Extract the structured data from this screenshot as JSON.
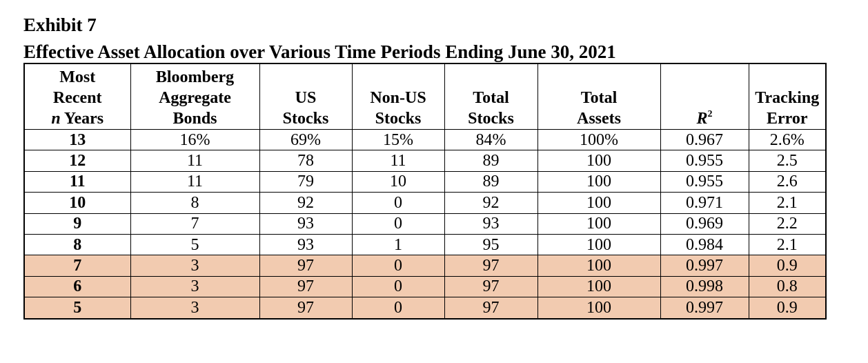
{
  "heading": {
    "exhibit": "Exhibit 7",
    "title": "Effective Asset Allocation over Various Time Periods Ending June 30, 2021"
  },
  "table": {
    "headers": {
      "years": {
        "line1": "Most",
        "line2": "Recent",
        "line3_italic": "n",
        "line3_rest": " Years"
      },
      "bonds": {
        "line1": "Bloomberg",
        "line2": "Aggregate",
        "line3": "Bonds"
      },
      "us": {
        "line1": "US",
        "line2": "Stocks"
      },
      "nonus": {
        "line1": "Non-US",
        "line2": "Stocks"
      },
      "total_stocks": {
        "line1": "Total",
        "line2": "Stocks"
      },
      "total_assets": {
        "line1": "Total",
        "line2": "Assets"
      },
      "r2": {
        "base": "R",
        "sup": "2"
      },
      "te": {
        "line1": "Tracking",
        "line2": "Error"
      }
    },
    "highlight_color": "#f2cbb0",
    "rows": [
      {
        "years": "13",
        "bonds": "16%",
        "us": "69%",
        "nonus": "15%",
        "total_stocks": "84%",
        "total_assets": "100%",
        "r2": "0.967",
        "te": "2.6%",
        "highlighted": false
      },
      {
        "years": "12",
        "bonds": "11",
        "us": "78",
        "nonus": "11",
        "total_stocks": "89",
        "total_assets": "100",
        "r2": "0.955",
        "te": "2.5",
        "highlighted": false
      },
      {
        "years": "11",
        "bonds": "11",
        "us": "79",
        "nonus": "10",
        "total_stocks": "89",
        "total_assets": "100",
        "r2": "0.955",
        "te": "2.6",
        "highlighted": false
      },
      {
        "years": "10",
        "bonds": "8",
        "us": "92",
        "nonus": "0",
        "total_stocks": "92",
        "total_assets": "100",
        "r2": "0.971",
        "te": "2.1",
        "highlighted": false
      },
      {
        "years": "9",
        "bonds": "7",
        "us": "93",
        "nonus": "0",
        "total_stocks": "93",
        "total_assets": "100",
        "r2": "0.969",
        "te": "2.2",
        "highlighted": false
      },
      {
        "years": "8",
        "bonds": "5",
        "us": "93",
        "nonus": "1",
        "total_stocks": "95",
        "total_assets": "100",
        "r2": "0.984",
        "te": "2.1",
        "highlighted": false
      },
      {
        "years": "7",
        "bonds": "3",
        "us": "97",
        "nonus": "0",
        "total_stocks": "97",
        "total_assets": "100",
        "r2": "0.997",
        "te": "0.9",
        "highlighted": true
      },
      {
        "years": "6",
        "bonds": "3",
        "us": "97",
        "nonus": "0",
        "total_stocks": "97",
        "total_assets": "100",
        "r2": "0.998",
        "te": "0.8",
        "highlighted": true
      },
      {
        "years": "5",
        "bonds": "3",
        "us": "97",
        "nonus": "0",
        "total_stocks": "97",
        "total_assets": "100",
        "r2": "0.997",
        "te": "0.9",
        "highlighted": true
      }
    ]
  }
}
